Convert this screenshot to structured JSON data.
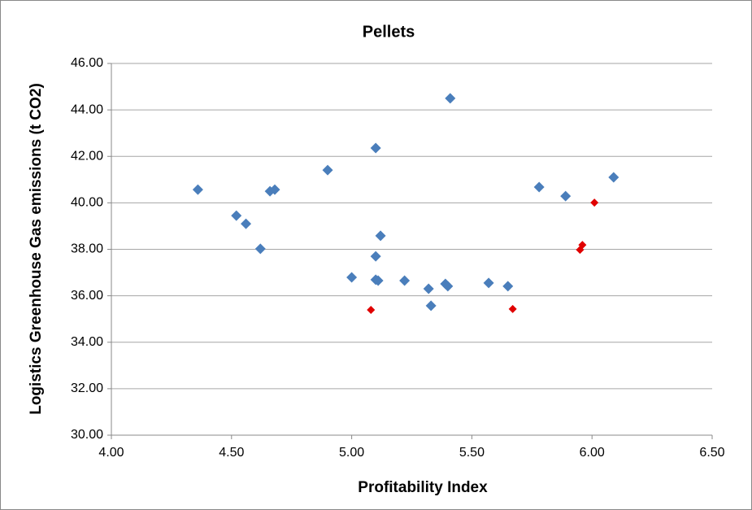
{
  "chart_data": {
    "type": "scatter",
    "title": "Pellets",
    "x_label": "Profitability Index",
    "y_label": "Logistics Greenhouse Gas emissions (t CO2)",
    "xlim": [
      4,
      6.5
    ],
    "xticks": [
      {
        "value": 4,
        "label": "4.00"
      },
      {
        "value": 4.5,
        "label": "4.50"
      },
      {
        "value": 5,
        "label": "5.00"
      },
      {
        "value": 5.5,
        "label": "5.50"
      },
      {
        "value": 6,
        "label": "6.00"
      },
      {
        "value": 6.5,
        "label": "6.50"
      }
    ],
    "ylim": [
      30,
      46
    ],
    "yticks": [
      {
        "value": 30,
        "label": "30.00"
      },
      {
        "value": 32,
        "label": "32.00"
      },
      {
        "value": 34,
        "label": "34.00"
      },
      {
        "value": 36,
        "label": "36.00"
      },
      {
        "value": 38,
        "label": "38.00"
      },
      {
        "value": 40,
        "label": "40.00"
      },
      {
        "value": 42,
        "label": "42.00"
      },
      {
        "value": 44,
        "label": "44.00"
      },
      {
        "value": 46,
        "label": "46.00"
      }
    ],
    "grid": true,
    "series": [
      {
        "color": "#4a7ebb",
        "x": [
          4.36,
          4.52,
          4.56,
          4.62,
          4.66,
          4.68,
          4.9,
          5.0,
          5.1,
          5.1,
          5.1,
          5.11,
          5.12,
          5.22,
          5.32,
          5.33,
          5.39,
          5.4,
          5.57,
          5.65,
          5.41,
          5.78,
          5.89,
          6.09
        ],
        "values": [
          40.57,
          39.45,
          39.1,
          38.02,
          40.5,
          40.57,
          41.41,
          36.79,
          42.36,
          37.7,
          36.69,
          36.65,
          38.58,
          36.65,
          36.3,
          35.57,
          36.51,
          36.41,
          36.55,
          36.41,
          44.5,
          40.68,
          40.29,
          41.1
        ]
      },
      {
        "color": "#e00000",
        "x": [
          5.08,
          5.67,
          5.96,
          5.95,
          6.01
        ],
        "values": [
          35.39,
          35.43,
          38.19,
          37.98,
          40.01
        ]
      }
    ]
  }
}
